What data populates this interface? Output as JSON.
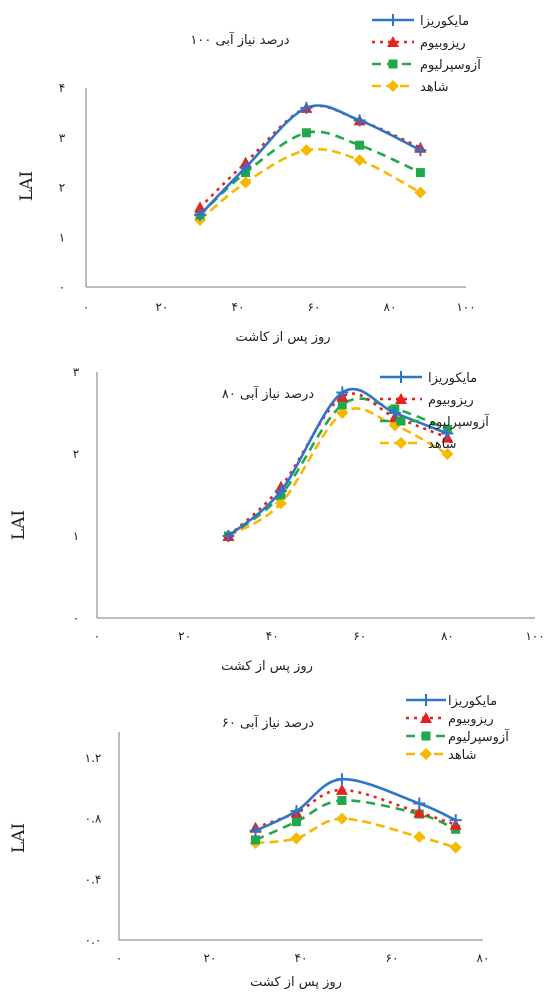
{
  "series_styles": [
    {
      "color": "#2e75c8",
      "dash": "",
      "marker": "plus"
    },
    {
      "color": "#e8211c",
      "dash": "3,5",
      "marker": "triangle"
    },
    {
      "color": "#21a84c",
      "dash": "9,6",
      "marker": "square"
    },
    {
      "color": "#f7b900",
      "dash": "9,5",
      "marker": "diamond"
    }
  ],
  "chart_data": [
    {
      "type": "line",
      "title": "۱۰۰ درصد نیاز آبی",
      "xlabel": "روز پس از کاشت",
      "ylabel": "LAI",
      "xlim": [
        0,
        100
      ],
      "ylim": [
        0,
        4
      ],
      "xticks": [
        "۰",
        "۲۰",
        "۴۰",
        "۶۰",
        "۸۰",
        "۱۰۰"
      ],
      "yticks": [
        "۰",
        "۱",
        "۲",
        "۳",
        "۴"
      ],
      "legend_position": "top-right",
      "x": [
        30,
        42,
        58,
        72,
        88
      ],
      "series": [
        {
          "name": "مایکوریزا",
          "values": [
            1.45,
            2.4,
            3.6,
            3.35,
            2.75
          ]
        },
        {
          "name": "ریزوبیوم",
          "values": [
            1.6,
            2.5,
            3.6,
            3.35,
            2.8
          ]
        },
        {
          "name": "آزوسپرلیوم",
          "values": [
            1.45,
            2.3,
            3.1,
            2.85,
            2.3
          ]
        },
        {
          "name": "شاهد",
          "values": [
            1.35,
            2.1,
            2.75,
            2.55,
            1.9
          ]
        }
      ]
    },
    {
      "type": "line",
      "title": "۸۰ درصد نیاز آبی",
      "xlabel": "روز پس از کشت",
      "ylabel": "LAI",
      "xlim": [
        0,
        100
      ],
      "ylim": [
        0,
        3
      ],
      "xticks": [
        "۰",
        "۲۰",
        "۴۰",
        "۶۰",
        "۸۰",
        "۱۰۰"
      ],
      "yticks": [
        "۰",
        "۱",
        "۲",
        "۳"
      ],
      "legend_position": "top-right",
      "x": [
        30,
        42,
        56,
        68,
        80
      ],
      "series": [
        {
          "name": "مایکوریزا",
          "values": [
            1.0,
            1.55,
            2.75,
            2.5,
            2.25
          ]
        },
        {
          "name": "ریزوبیوم",
          "values": [
            1.0,
            1.6,
            2.7,
            2.45,
            2.2
          ]
        },
        {
          "name": "آزوسپرلیوم",
          "values": [
            1.0,
            1.5,
            2.6,
            2.55,
            2.3
          ]
        },
        {
          "name": "شاهد",
          "values": [
            1.0,
            1.4,
            2.5,
            2.35,
            2.0
          ]
        }
      ]
    },
    {
      "type": "line",
      "title": "۶۰ درصد نیاز آبی",
      "xlabel": "روز پس از کشت",
      "ylabel": "LAI",
      "xlim": [
        0,
        80
      ],
      "ylim": [
        0,
        1.2
      ],
      "xticks": [
        "۰",
        "۲۰",
        "۴۰",
        "۶۰",
        "۸۰"
      ],
      "yticks": [
        "۰.۰",
        "۰.۴",
        "۰.۸",
        "۱.۲"
      ],
      "legend_position": "top-right",
      "x": [
        30,
        39,
        49,
        66,
        74
      ],
      "series": [
        {
          "name": "مایکوریزا",
          "values": [
            0.72,
            0.85,
            1.06,
            0.9,
            0.79
          ]
        },
        {
          "name": "ریزوبیوم",
          "values": [
            0.74,
            0.84,
            0.99,
            0.84,
            0.76
          ]
        },
        {
          "name": "آزوسپرلیوم",
          "values": [
            0.66,
            0.78,
            0.92,
            0.83,
            0.73
          ]
        },
        {
          "name": "شاهد",
          "values": [
            0.64,
            0.67,
            0.8,
            0.68,
            0.61
          ]
        }
      ]
    }
  ]
}
